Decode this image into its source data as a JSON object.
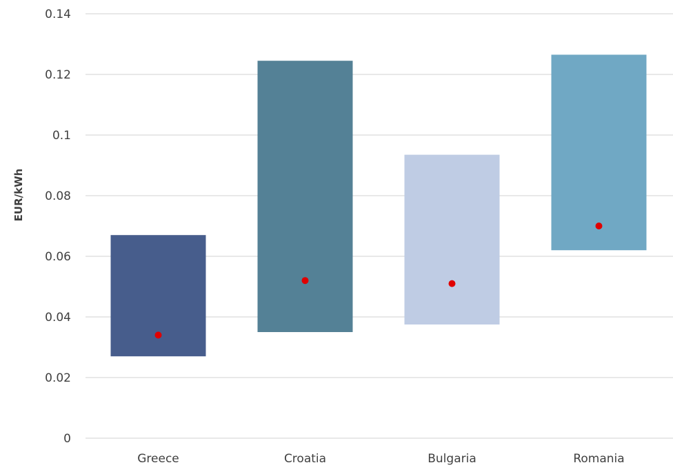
{
  "chart_data": {
    "type": "bar",
    "subtype": "floating-range-with-marker",
    "title": "",
    "xlabel": "",
    "ylabel": "EUR/kWh",
    "ylim": [
      0,
      0.14
    ],
    "yticks": [
      "0",
      "0.02",
      "0.04",
      "0.06",
      "0.08",
      "0.1",
      "0.12",
      "0.14"
    ],
    "yticks_values": [
      0,
      0.02,
      0.04,
      0.06,
      0.08,
      0.1,
      0.12,
      0.14
    ],
    "grid": true,
    "legend": "none",
    "categories": [
      "Greece",
      "Croatia",
      "Bulgaria",
      "Romania"
    ],
    "range_min": [
      0.027,
      0.035,
      0.0375,
      0.062
    ],
    "range_max": [
      0.067,
      0.1245,
      0.0935,
      0.1265
    ],
    "marker_values": [
      0.034,
      0.052,
      0.051,
      0.07
    ],
    "bar_colors": [
      "#475d8c",
      "#548196",
      "#bfcce4",
      "#70a8c4"
    ],
    "marker_color": "#e00000",
    "grid_color": "#d9d9d9"
  }
}
